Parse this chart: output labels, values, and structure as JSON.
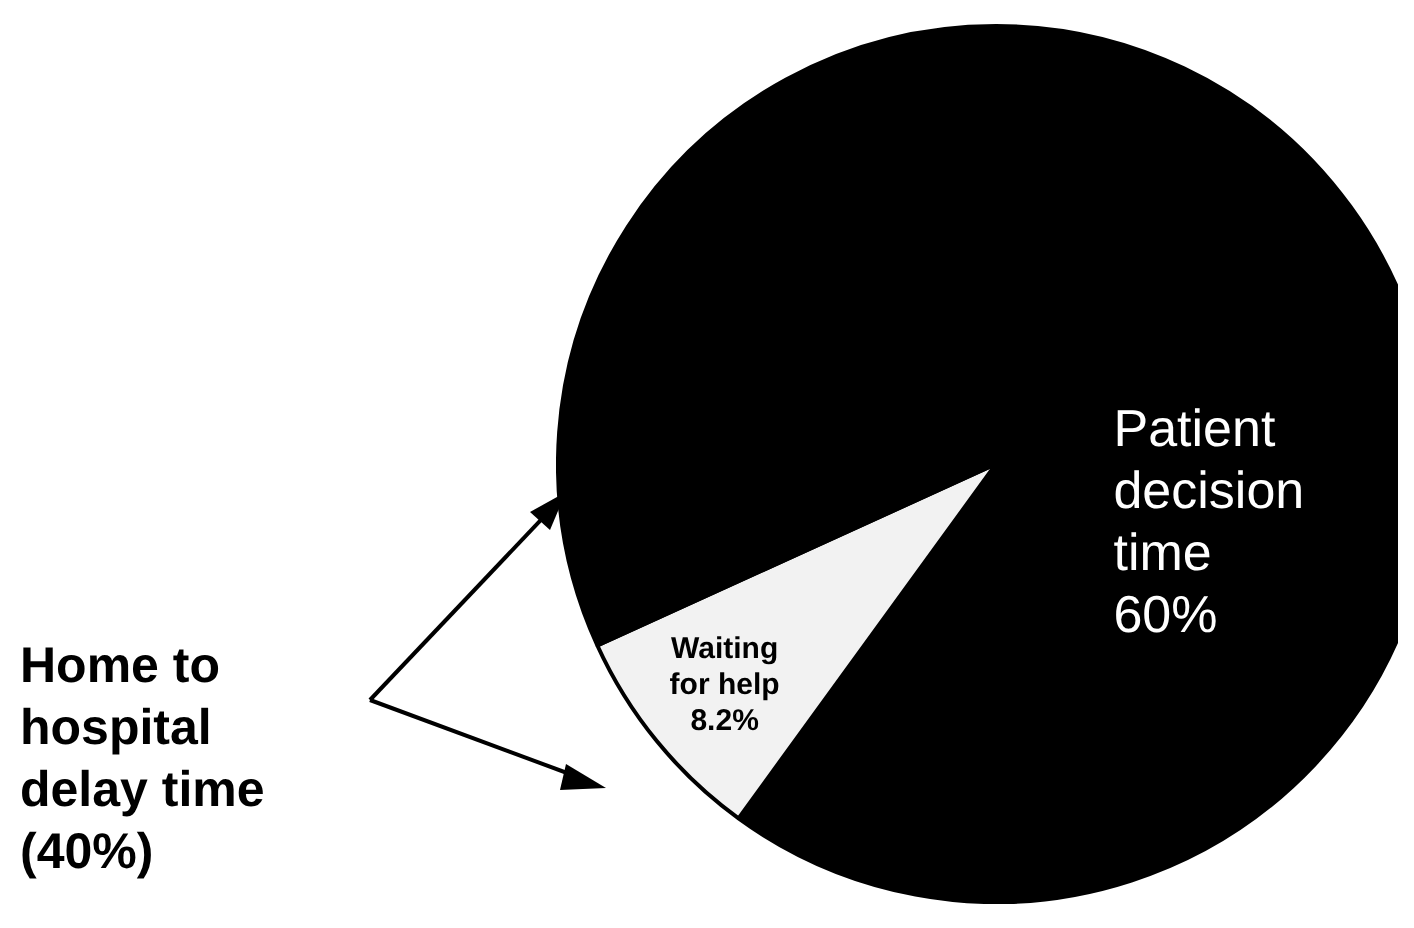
{
  "chart_data": {
    "type": "pie",
    "categories": [
      "Patient decision time",
      "Waiting for help",
      null
    ],
    "values": [
      60,
      8.2,
      31.8
    ],
    "colors": [
      "#000000",
      "#f2f2f2",
      "#000000"
    ],
    "value_labels": [
      "60%",
      "8.2%",
      null
    ],
    "annotations": [
      "Home to hospital delay time (40%)"
    ]
  }
}
